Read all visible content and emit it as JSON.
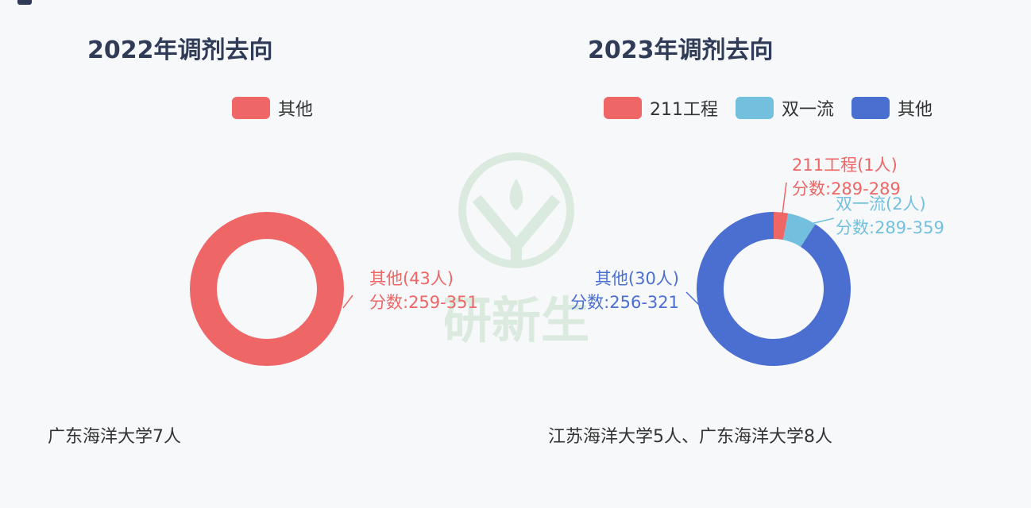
{
  "chart_data": [
    {
      "type": "pie",
      "title": "2022年调剂去向",
      "legend_position": "top",
      "slices": [
        {
          "name": "其他",
          "value": 43,
          "label_line1": "其他(43人)",
          "label_line2": "分数:259-351",
          "color": "#ee6666"
        }
      ],
      "caption": "广东海洋大学7人"
    },
    {
      "type": "pie",
      "title": "2023年调剂去向",
      "legend_position": "top",
      "slices": [
        {
          "name": "211工程",
          "value": 1,
          "label_line1": "211工程(1人)",
          "label_line2": "分数:289-289",
          "color": "#ee6666"
        },
        {
          "name": "双一流",
          "value": 2,
          "label_line1": "双一流(2人)",
          "label_line2": "分数:289-359",
          "color": "#73c0de"
        },
        {
          "name": "其他",
          "value": 30,
          "label_line1": "其他(30人)",
          "label_line2": "分数:256-321",
          "color": "#4a6fd1"
        }
      ],
      "caption": "江苏海洋大学5人、广东海洋大学8人"
    }
  ],
  "watermark": "研新生"
}
